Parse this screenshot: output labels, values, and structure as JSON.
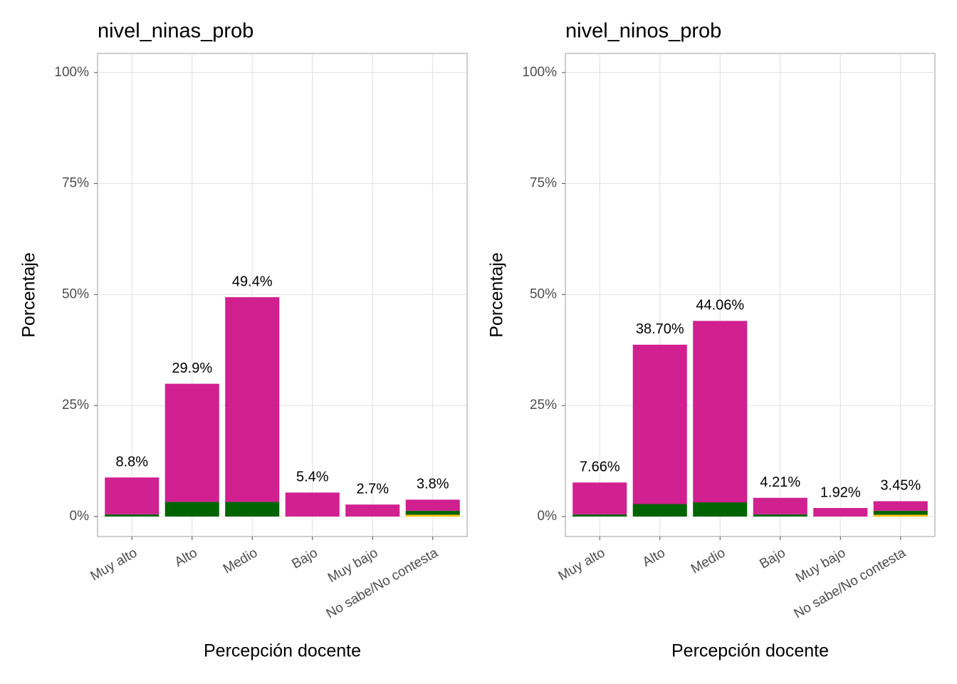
{
  "chart_data": [
    {
      "type": "bar",
      "stacked": true,
      "title": "nivel_ninas_prob",
      "x_label": "Percepción docente",
      "y_label": "Porcentaje",
      "categories": [
        "Muy alto",
        "Alto",
        "Medio",
        "Bajo",
        "Muy bajo",
        "No sabe/No contesta"
      ],
      "series": [
        {
          "color": "#ffc000",
          "values": [
            0,
            0,
            0,
            0,
            0,
            0.4
          ]
        },
        {
          "color": "#006400",
          "values": [
            0.5,
            3.3,
            3.3,
            0,
            0,
            0.9
          ]
        },
        {
          "color": "#d12090",
          "values": [
            8.3,
            26.6,
            46.1,
            5.4,
            2.7,
            2.5
          ]
        }
      ],
      "totals": [
        8.8,
        29.9,
        49.4,
        5.4,
        2.7,
        3.8
      ],
      "total_labels": [
        "8.8%",
        "29.9%",
        "49.4%",
        "5.4%",
        "2.7%",
        "3.8%"
      ],
      "ylim": [
        -4.5,
        104.3
      ],
      "yticks": [
        {
          "value": 0,
          "label": "0%"
        },
        {
          "value": 25,
          "label": "25%"
        },
        {
          "value": 50,
          "label": "50%"
        },
        {
          "value": 75,
          "label": "75%"
        },
        {
          "value": 100,
          "label": "100%"
        }
      ],
      "grid": true
    },
    {
      "type": "bar",
      "stacked": true,
      "title": "nivel_ninos_prob",
      "x_label": "Percepción docente",
      "y_label": "Porcentaje",
      "categories": [
        "Muy alto",
        "Alto",
        "Medio",
        "Bajo",
        "Muy bajo",
        "No sabe/No contesta"
      ],
      "series": [
        {
          "color": "#ffc000",
          "values": [
            0,
            0,
            0,
            0,
            0,
            0.4
          ]
        },
        {
          "color": "#006400",
          "values": [
            0.5,
            2.8,
            3.2,
            0.5,
            0,
            0.9
          ]
        },
        {
          "color": "#d12090",
          "values": [
            7.16,
            35.9,
            40.86,
            3.71,
            1.92,
            2.15
          ]
        }
      ],
      "totals": [
        7.66,
        38.7,
        44.06,
        4.21,
        1.92,
        3.45
      ],
      "total_labels": [
        "7.66%",
        "38.70%",
        "44.06%",
        "4.21%",
        "1.92%",
        "3.45%"
      ],
      "ylim": [
        -4.5,
        104.3
      ],
      "yticks": [
        {
          "value": 0,
          "label": "0%"
        },
        {
          "value": 25,
          "label": "25%"
        },
        {
          "value": 50,
          "label": "50%"
        },
        {
          "value": 75,
          "label": "75%"
        },
        {
          "value": 100,
          "label": "100%"
        }
      ],
      "grid": true
    }
  ]
}
